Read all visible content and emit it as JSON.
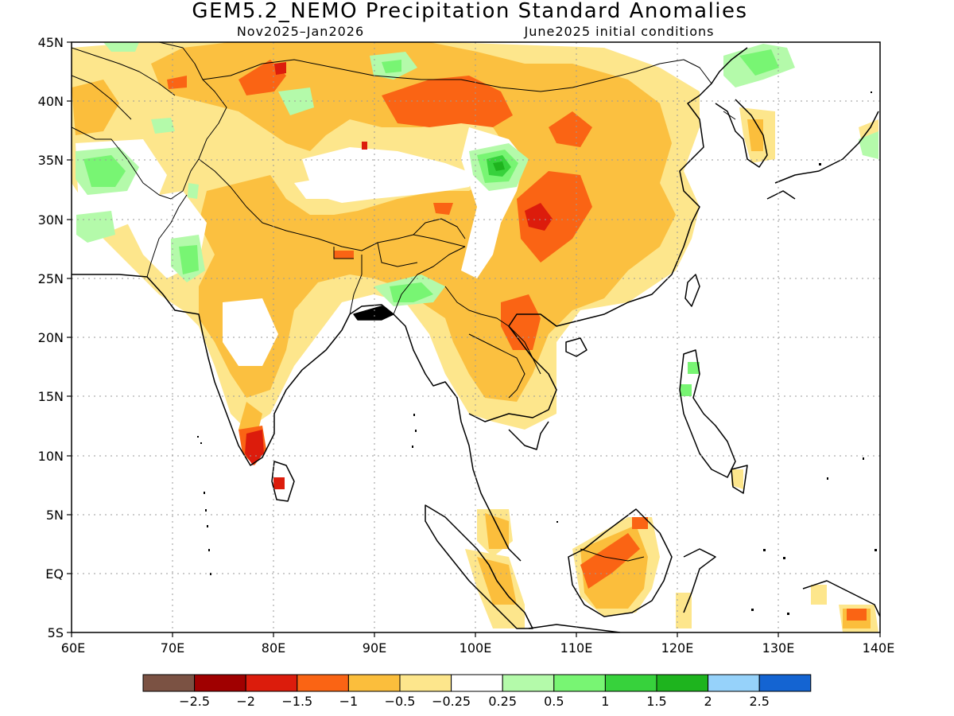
{
  "title": "GEM5.2_NEMO Precipitation Standard Anomalies",
  "subtitle_left": "Nov2025–Jan2026",
  "subtitle_right": "June2025 initial conditions",
  "lat_labels": [
    "45N",
    "40N",
    "35N",
    "30N",
    "25N",
    "20N",
    "15N",
    "10N",
    "5N",
    "EQ",
    "5S"
  ],
  "lon_labels": [
    "60E",
    "70E",
    "80E",
    "90E",
    "100E",
    "110E",
    "120E",
    "130E",
    "140E"
  ],
  "colorbar": {
    "colors": [
      "#7b5243",
      "#a00000",
      "#dc1c0c",
      "#fa6414",
      "#fbbe3c",
      "#fde68c",
      "#ffffff",
      "#b4faaa",
      "#78f573",
      "#37d23c",
      "#1eb41e",
      "#96d2fa",
      "#1464d2"
    ],
    "labels": [
      "−2.5",
      "−2",
      "−1.5",
      "−1",
      "−0.5",
      "−0.25",
      "0.25",
      "0.5",
      "1",
      "1.5",
      "2",
      "2.5"
    ]
  },
  "palette": {
    "dry_light": "#fde68c",
    "dry": "#fbbe3c",
    "dry_strong": "#fa6414",
    "dry_very": "#dc1c0c",
    "dry_extreme": "#a00000",
    "wet_light": "#b4faaa",
    "wet": "#78f573",
    "wet_strong": "#37d23c",
    "wet_very": "#1eb41e"
  }
}
